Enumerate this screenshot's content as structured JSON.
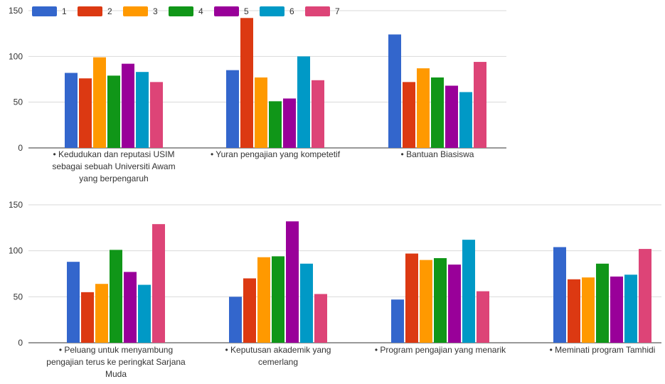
{
  "colors": [
    "#3366cc",
    "#dc3912",
    "#ff9900",
    "#109618",
    "#990099",
    "#0099c6",
    "#dd4477"
  ],
  "chart_data": [
    {
      "type": "bar",
      "legend": "top-left",
      "grid": true,
      "ylim": [
        0,
        150
      ],
      "yticks": [
        "0",
        "50",
        "100",
        "150"
      ],
      "series_names": [
        "1",
        "2",
        "3",
        "4",
        "5",
        "6",
        "7"
      ],
      "categories": [
        [
          "• Kedudukan dan reputasi USIM",
          "sebagai sebuah Universiti Awam",
          "yang berpengaruh"
        ],
        [
          "• Yuran pengajian yang kompetetif"
        ],
        [
          "• Bantuan Biasiswa"
        ]
      ],
      "values": [
        [
          82,
          76,
          99,
          79,
          92,
          83,
          72
        ],
        [
          85,
          142,
          77,
          51,
          54,
          100,
          74
        ],
        [
          124,
          72,
          87,
          77,
          68,
          61,
          94
        ]
      ]
    },
    {
      "type": "bar",
      "legend": "none",
      "grid": true,
      "ylim": [
        0,
        150
      ],
      "yticks": [
        "0",
        "50",
        "100",
        "150"
      ],
      "series_names": [
        "1",
        "2",
        "3",
        "4",
        "5",
        "6",
        "7"
      ],
      "categories": [
        [
          "• Peluang untuk menyambung",
          "pengajian terus ke peringkat Sarjana",
          "Muda"
        ],
        [
          "• Keputusan akademik yang",
          "cemerlang"
        ],
        [
          "• Program pengajian yang menarik"
        ],
        [
          "• Meminati program Tamhidi"
        ]
      ],
      "values": [
        [
          88,
          55,
          64,
          101,
          77,
          63,
          129
        ],
        [
          50,
          70,
          93,
          94,
          132,
          86,
          53
        ],
        [
          47,
          97,
          90,
          92,
          85,
          112,
          56
        ],
        [
          104,
          69,
          71,
          86,
          72,
          74,
          102
        ]
      ]
    }
  ]
}
